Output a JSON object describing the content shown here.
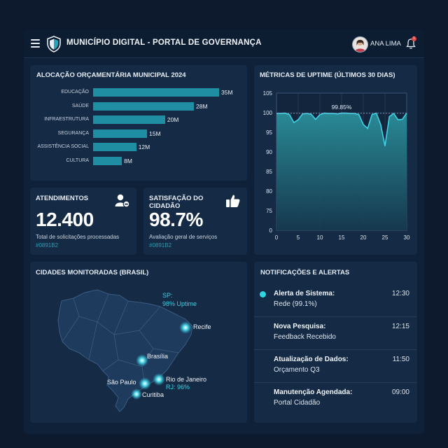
{
  "header": {
    "title": "MUNICÍPIO DIGITAL - PORTAL DE GOVERNANÇA",
    "user_name": "ANA LIMA",
    "notification_count": "1",
    "icons": [
      "menu-icon",
      "shield-logo-icon",
      "avatar",
      "bell-icon"
    ]
  },
  "budget": {
    "title": "ALOCAÇÃO ORÇAMENTÁRIA MUNICIPAL 2024",
    "chart_data": {
      "type": "bar",
      "orientation": "horizontal",
      "title": "ALOCAÇÃO ORÇAMENTÁRIA MUNICIPAL 2024",
      "categories": [
        "EDUCAÇÃO",
        "SAÚDE",
        "INFRAESTRUTURA",
        "SEGURANÇA",
        "ASSISTÊNCIA SOCIAL",
        "CULTURA"
      ],
      "values": [
        35,
        28,
        20,
        15,
        12,
        8
      ],
      "value_labels": [
        "35M",
        "28M",
        "20M",
        "15M",
        "12M",
        "8M"
      ],
      "xlim": [
        0,
        35
      ],
      "color": "#1f8ea3"
    }
  },
  "uptime": {
    "title": "MÉTRICAS DE UPTIME (ÚLTIMOS 30 DIAS)",
    "chart_data": {
      "type": "area",
      "title": "MÉTRICAS DE UPTIME (ÚLTIMOS 30 DIAS)",
      "annotation": "99.85%",
      "x": [
        0,
        1,
        2,
        3,
        4,
        5,
        6,
        7,
        8,
        9,
        10,
        11,
        12,
        13,
        14,
        15,
        16,
        17,
        18,
        19,
        20,
        21,
        22,
        23,
        24,
        25,
        26,
        27,
        28,
        29,
        30
      ],
      "y": [
        99.8,
        99.8,
        99.9,
        99.5,
        97.5,
        98.2,
        99.7,
        99.8,
        99.6,
        98.3,
        99.5,
        99.9,
        99.8,
        99.8,
        99.7,
        99.9,
        99.9,
        99.8,
        99.8,
        99.5,
        97.0,
        96.0,
        99.5,
        99.9,
        97.0,
        91.5,
        99.0,
        99.8,
        98.2,
        98.3,
        99.9
      ],
      "x_ticks": [
        0,
        5,
        10,
        15,
        20,
        25,
        30
      ],
      "y_ticks": [
        0,
        75,
        80,
        85,
        90,
        95,
        100,
        105
      ],
      "reference_line": 99.85,
      "grid": true,
      "color": "#3fd2e6"
    }
  },
  "kpi_attendance": {
    "title": "ATENDIMENTOS",
    "value": "12.400",
    "subtitle": "Total de solicitações processadas",
    "code": "#0891B2",
    "icon": "user-badge-icon"
  },
  "kpi_satisfaction": {
    "title": "SATISFAÇÃO DO CIDADÃO",
    "value": "98.7%",
    "subtitle": "Avaliação geral de serviços",
    "code": "#0891B2",
    "icon": "thumbs-up-icon"
  },
  "map": {
    "title": "CIDADES MONITORADAS (BRASIL)",
    "cities": [
      {
        "name": "Recife",
        "detail": ""
      },
      {
        "name": "Brasília",
        "detail": ""
      },
      {
        "name": "Rio de Janeiro",
        "detail": "RJ: 96%"
      },
      {
        "name": "São Paulo",
        "detail": ""
      },
      {
        "name": "Curitiba",
        "detail": ""
      }
    ],
    "sp_callout_line1": "SP:",
    "sp_callout_line2": "98% Uptime"
  },
  "notifications": {
    "title": "NOTIFICAÇÕES E ALERTAS",
    "items": [
      {
        "title": "Alerta de Sistema:",
        "desc": "Rede (99.1%)",
        "time": "12:30",
        "unread": true
      },
      {
        "title": "Nova Pesquisa:",
        "desc": "Feedback Recebido",
        "time": "12:15",
        "unread": false
      },
      {
        "title": "Atualização de Dados:",
        "desc": "Orçamento Q3",
        "time": "11:50",
        "unread": false
      },
      {
        "title": "Manutenção Agendada:",
        "desc": "Portal Cidadão",
        "time": "09:00",
        "unread": false
      }
    ]
  }
}
